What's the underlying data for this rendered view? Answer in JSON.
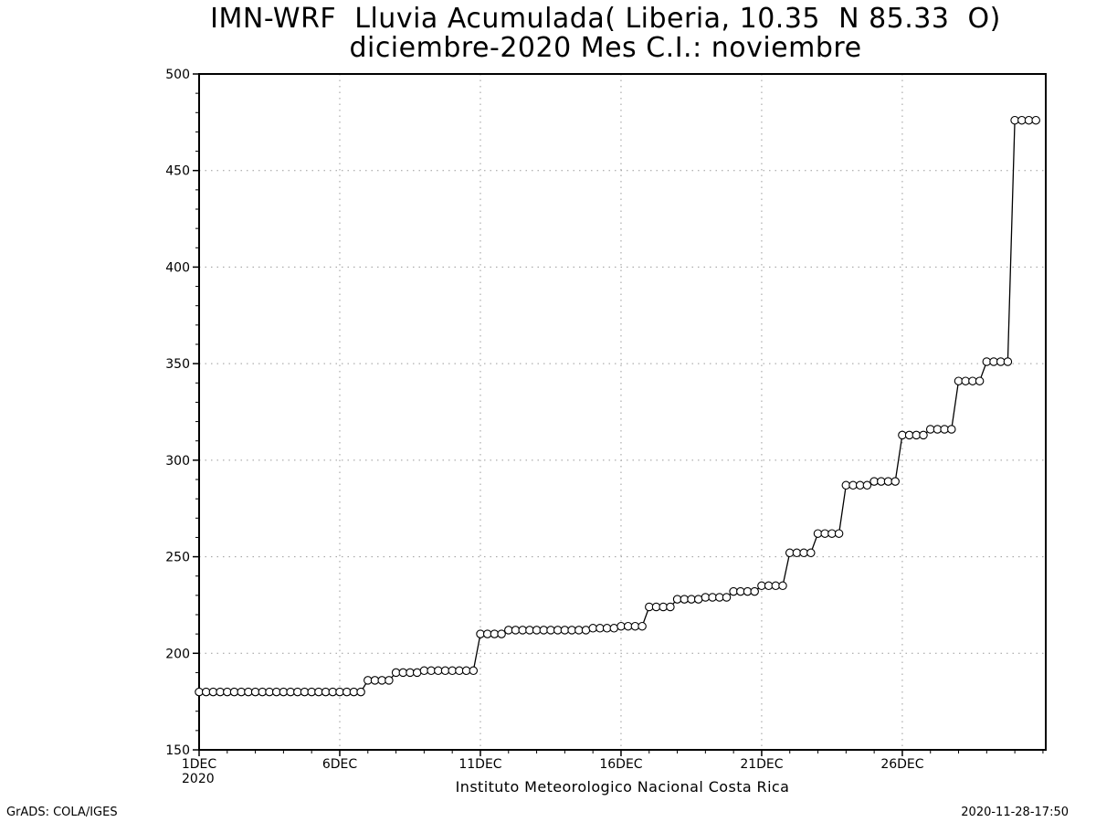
{
  "title_line1": "IMN-WRF  Lluvia Acumulada( Liberia, 10.35  N 85.33  O)",
  "title_line2": "diciembre-2020 Mes C.I.: noviembre",
  "credit": "Instituto Meteorologico Nacional Costa Rica",
  "footer_left": "GrADS: COLA/IGES",
  "footer_right": "2020-11-28-17:50",
  "year_label": "2020",
  "colors": {
    "line": "#000000",
    "marker_fill": "#ffffff",
    "grid": "#9a9a9a",
    "frame": "#000000"
  },
  "chart_data": {
    "type": "line",
    "title": "IMN-WRF  Lluvia Acumulada( Liberia, 10.35  N 85.33  O)",
    "subtitle": "diciembre-2020 Mes C.I.: noviembre",
    "xlabel": "",
    "ylabel": "",
    "x_ticks": [
      "1DEC",
      "6DEC",
      "11DEC",
      "16DEC",
      "21DEC",
      "26DEC"
    ],
    "x_tick_days": [
      1,
      6,
      11,
      16,
      21,
      26
    ],
    "xlim_days": [
      1,
      31.1
    ],
    "ylim": [
      150,
      500
    ],
    "y_ticks": [
      150,
      200,
      250,
      300,
      350,
      400,
      450,
      500
    ],
    "grid": true,
    "marker": "open-circle",
    "series": [
      {
        "step_hours": 6,
        "start": "1DEC 00Z",
        "values": [
          180,
          180,
          180,
          180,
          180,
          180,
          180,
          180,
          180,
          180,
          180,
          180,
          180,
          180,
          180,
          180,
          180,
          180,
          180,
          180,
          180,
          180,
          180,
          180,
          186,
          186,
          186,
          186,
          190,
          190,
          190,
          190,
          191,
          191,
          191,
          191,
          191,
          191,
          191,
          191,
          210,
          210,
          210,
          210,
          212,
          212,
          212,
          212,
          212,
          212,
          212,
          212,
          212,
          212,
          212,
          212,
          213,
          213,
          213,
          213,
          214,
          214,
          214,
          214,
          224,
          224,
          224,
          224,
          228,
          228,
          228,
          228,
          229,
          229,
          229,
          229,
          232,
          232,
          232,
          232,
          235,
          235,
          235,
          235,
          252,
          252,
          252,
          252,
          262,
          262,
          262,
          262,
          287,
          287,
          287,
          287,
          289,
          289,
          289,
          289,
          313,
          313,
          313,
          313,
          316,
          316,
          316,
          316,
          341,
          341,
          341,
          341,
          351,
          351,
          351,
          351,
          476,
          476,
          476,
          476
        ]
      }
    ]
  }
}
